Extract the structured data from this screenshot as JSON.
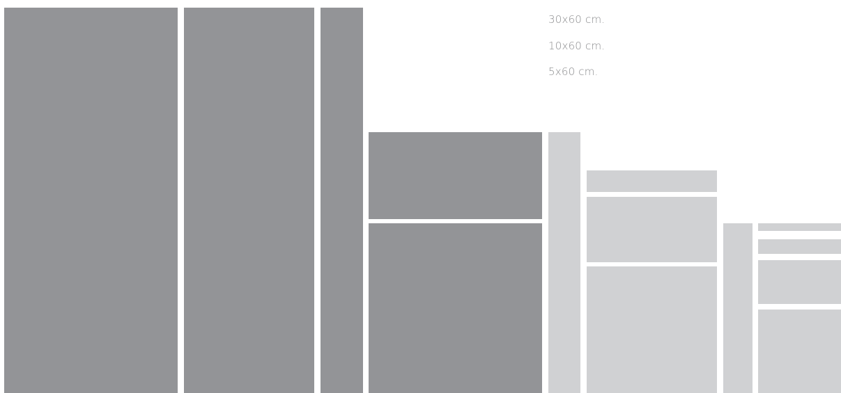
{
  "size_labels": [
    "30x60 cm.",
    "10x60 cm.",
    "5x60 cm."
  ],
  "colors": {
    "dark_tile": "#939497",
    "light_tile": "#d0d1d3",
    "label_text": "#8a8b8d",
    "background": "#ffffff"
  }
}
